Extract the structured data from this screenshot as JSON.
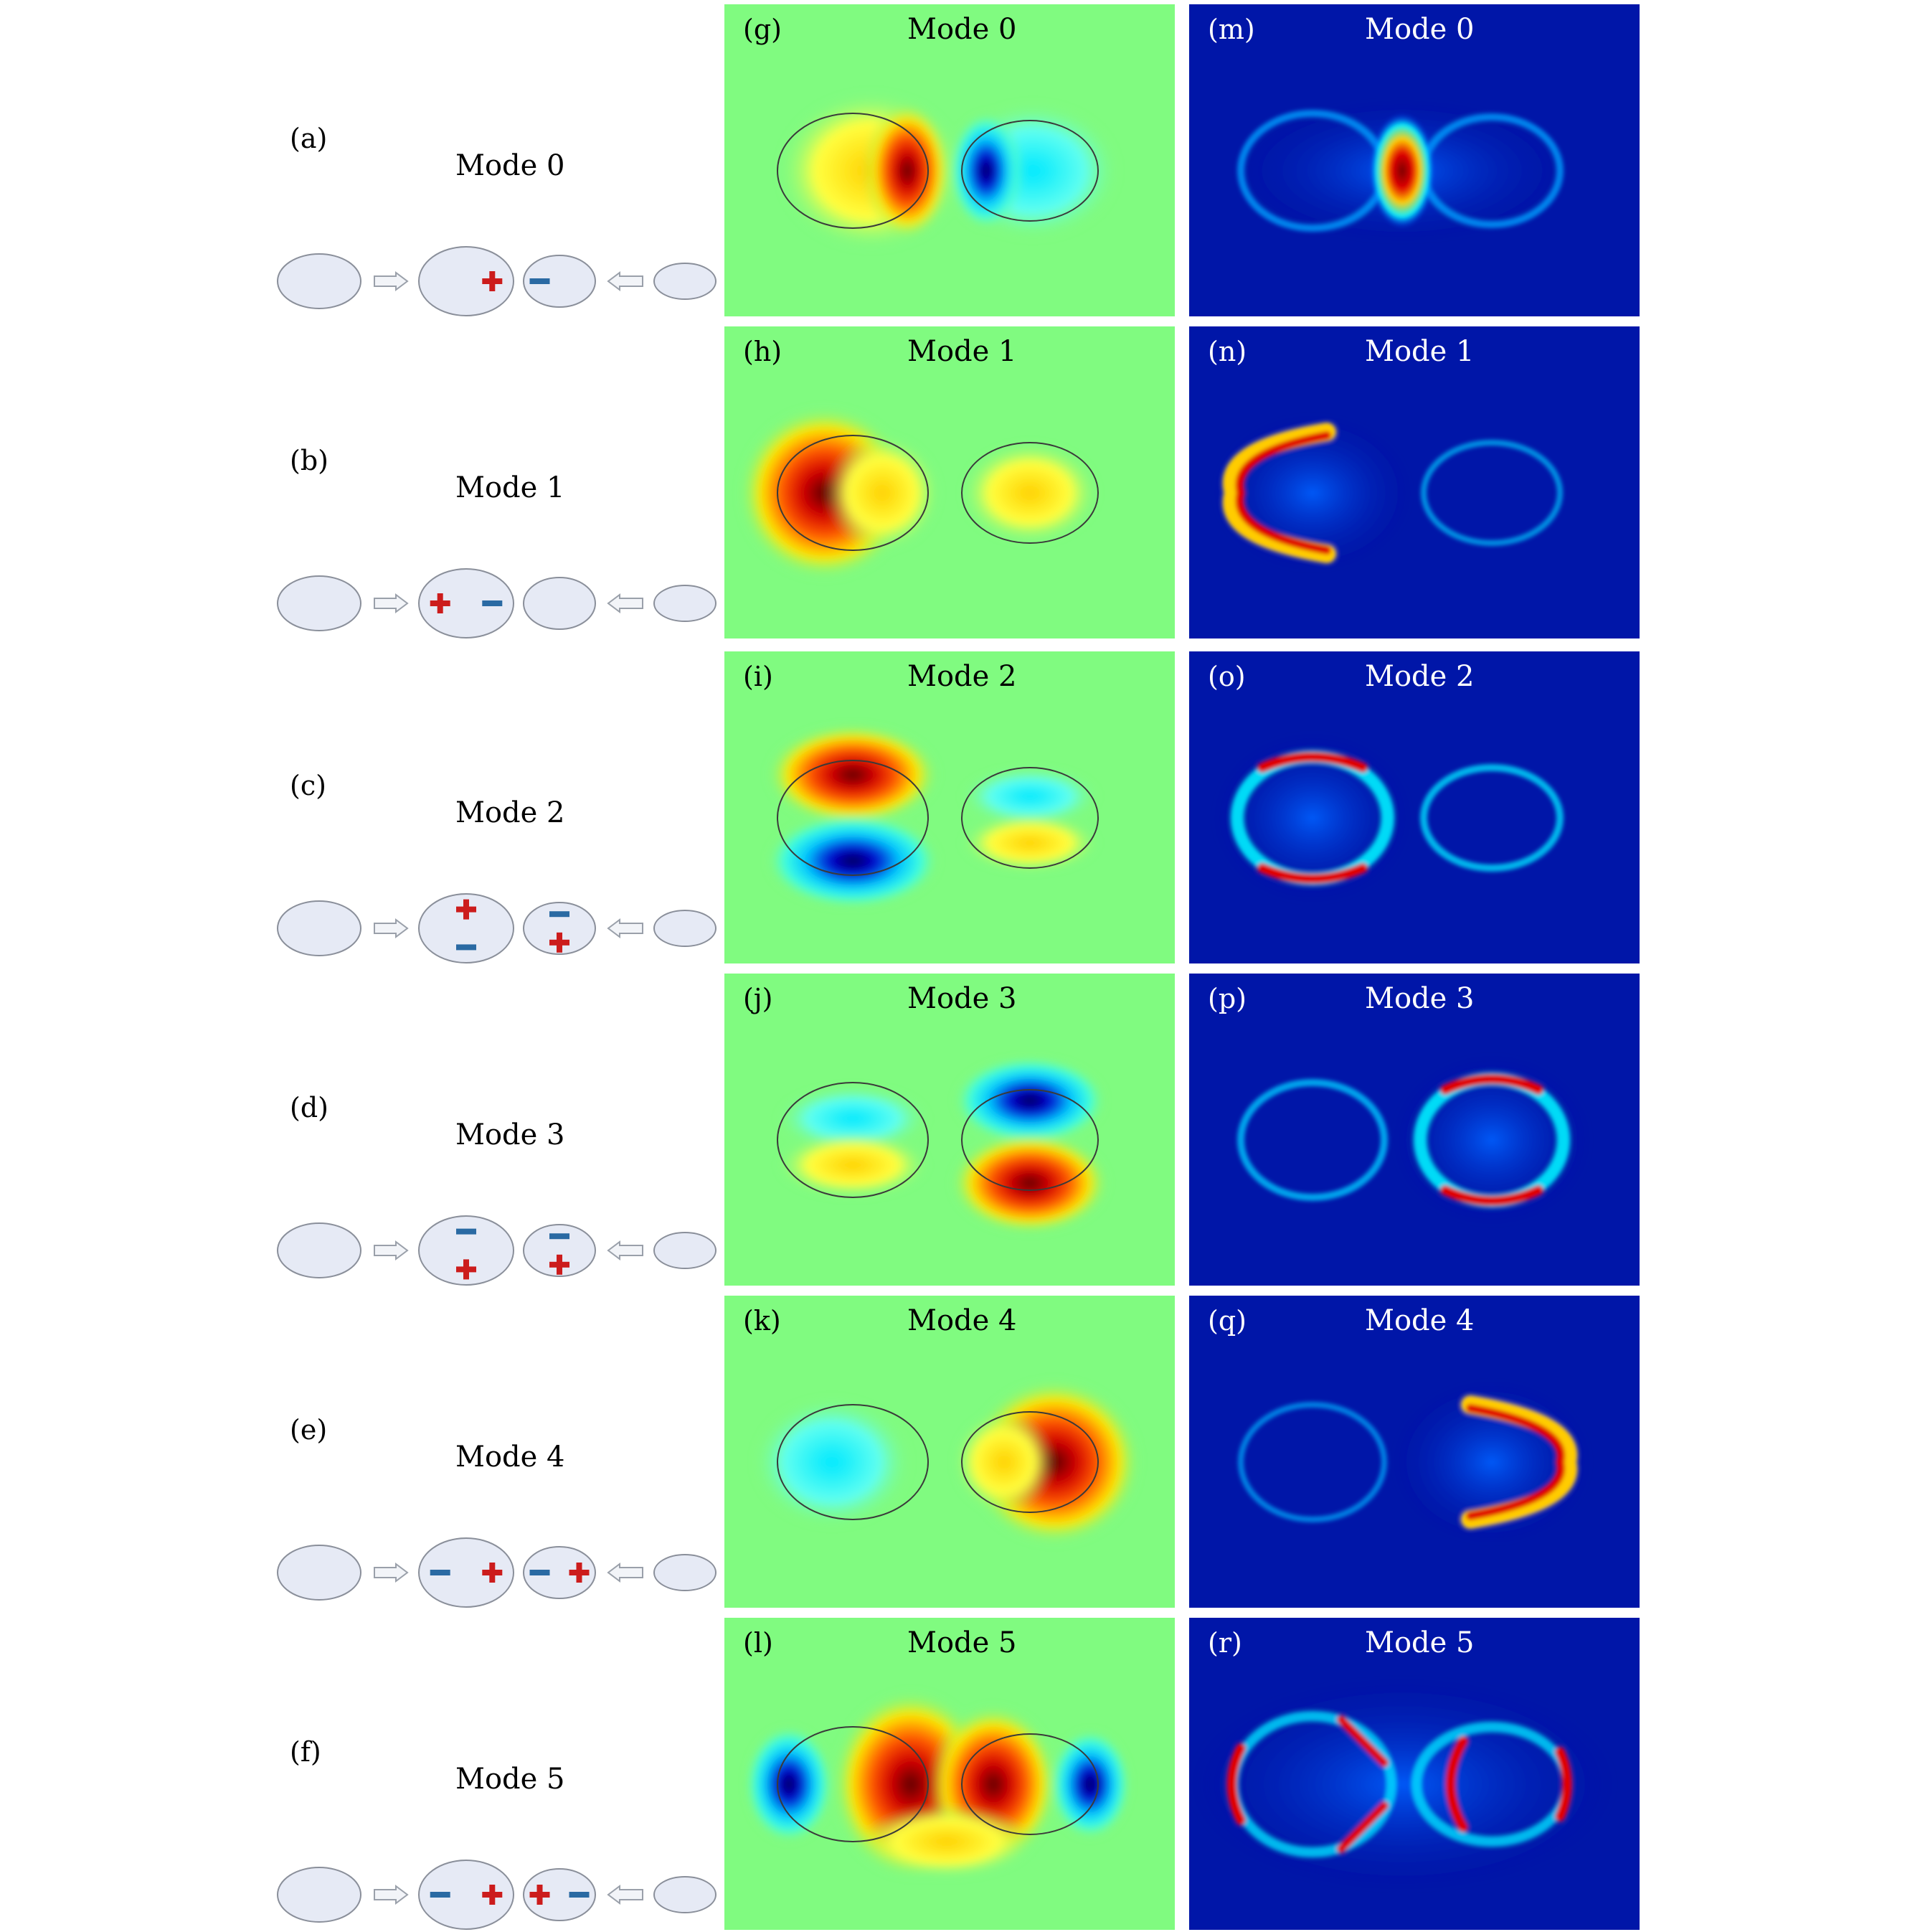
{
  "figure": {
    "rows": [
      {
        "schematic": {
          "label": "(a)",
          "title": "Mode 0",
          "charges": {
            "big": [
              {
                "sign": "+",
                "pos": "right"
              }
            ],
            "small": [
              {
                "sign": "-",
                "pos": "left"
              }
            ]
          }
        },
        "field": {
          "label": "(g)",
          "title": "Mode 0"
        },
        "intensity": {
          "label": "(m)",
          "title": "Mode 0"
        }
      },
      {
        "schematic": {
          "label": "(b)",
          "title": "Mode 1",
          "charges": {
            "big": [
              {
                "sign": "+",
                "pos": "left"
              },
              {
                "sign": "-",
                "pos": "right"
              }
            ],
            "small": []
          }
        },
        "field": {
          "label": "(h)",
          "title": "Mode 1"
        },
        "intensity": {
          "label": "(n)",
          "title": "Mode 1"
        }
      },
      {
        "schematic": {
          "label": "(c)",
          "title": "Mode 2",
          "charges": {
            "big": [
              {
                "sign": "+",
                "pos": "top"
              },
              {
                "sign": "-",
                "pos": "bottom"
              }
            ],
            "small": [
              {
                "sign": "-",
                "pos": "top"
              },
              {
                "sign": "+",
                "pos": "bottom"
              }
            ]
          }
        },
        "field": {
          "label": "(i)",
          "title": "Mode 2"
        },
        "intensity": {
          "label": "(o)",
          "title": "Mode 2"
        }
      },
      {
        "schematic": {
          "label": "(d)",
          "title": "Mode 3",
          "charges": {
            "big": [
              {
                "sign": "-",
                "pos": "top"
              },
              {
                "sign": "+",
                "pos": "bottom"
              }
            ],
            "small": [
              {
                "sign": "-",
                "pos": "top"
              },
              {
                "sign": "+",
                "pos": "bottom"
              }
            ]
          }
        },
        "field": {
          "label": "(j)",
          "title": "Mode 3"
        },
        "intensity": {
          "label": "(p)",
          "title": "Mode 3"
        }
      },
      {
        "schematic": {
          "label": "(e)",
          "title": "Mode 4",
          "charges": {
            "big": [
              {
                "sign": "-",
                "pos": "left"
              },
              {
                "sign": "+",
                "pos": "right"
              }
            ],
            "small": [
              {
                "sign": "-",
                "pos": "left"
              },
              {
                "sign": "+",
                "pos": "right"
              }
            ]
          }
        },
        "field": {
          "label": "(k)",
          "title": "Mode 4"
        },
        "intensity": {
          "label": "(q)",
          "title": "Mode 4"
        }
      },
      {
        "schematic": {
          "label": "(f)",
          "title": "Mode 5",
          "charges": {
            "big": [
              {
                "sign": "-",
                "pos": "left"
              },
              {
                "sign": "+",
                "pos": "right"
              }
            ],
            "small": [
              {
                "sign": "+",
                "pos": "left"
              },
              {
                "sign": "-",
                "pos": "right"
              }
            ]
          }
        },
        "field": {
          "label": "(l)",
          "title": "Mode 5"
        },
        "intensity": {
          "label": "(r)",
          "title": "Mode 5"
        }
      }
    ]
  },
  "colors": {
    "plus": "#cc1c1c",
    "minus": "#2a6aa3",
    "ellipse_fill": "#e6eaf5",
    "ellipse_stroke": "#8a8f9a",
    "field_background": "#80fb80",
    "intensity_background": "#0016a8",
    "red": "#e60000",
    "yellow": "#ffff00",
    "cyan": "#00ffff",
    "blue": "#0000dd",
    "dark": "#5a0000"
  }
}
